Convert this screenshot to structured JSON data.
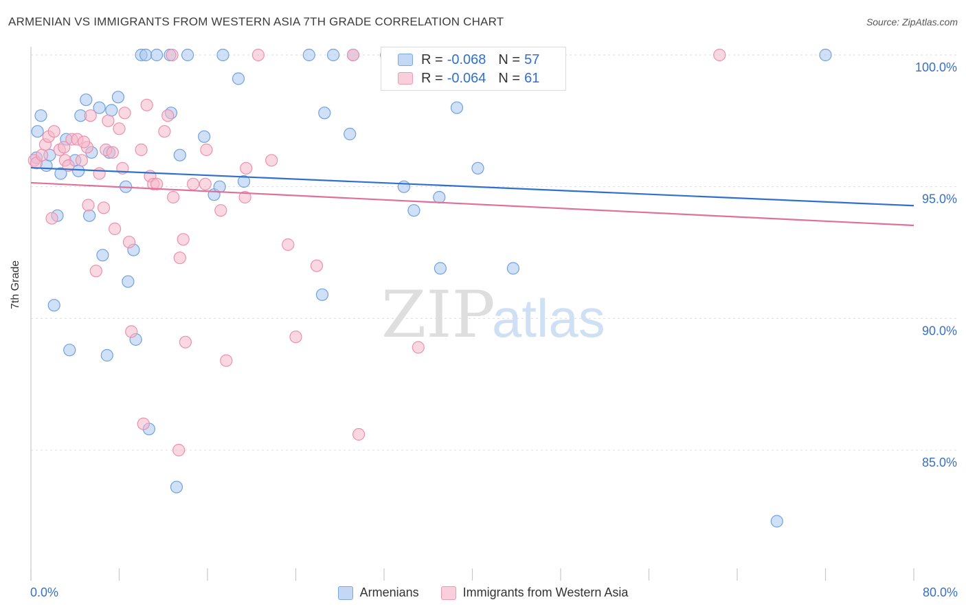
{
  "title": "ARMENIAN VS IMMIGRANTS FROM WESTERN ASIA 7TH GRADE CORRELATION CHART",
  "source": "Source: ZipAtlas.com",
  "watermark": {
    "zip": "ZIP",
    "atlas": "atlas"
  },
  "legend": {
    "rows": [
      {
        "r_label": "R =",
        "r_value": "-0.068",
        "n_label": "N =",
        "n_value": "57",
        "color": "#a9c6f0"
      },
      {
        "r_label": "R =",
        "r_value": "-0.064",
        "n_label": "N =",
        "n_value": "61",
        "color": "#f5b8cb"
      }
    ]
  },
  "bottom_legend": [
    {
      "label": "Armenians",
      "color": "#a9c6f0"
    },
    {
      "label": "Immigrants from Western Asia",
      "color": "#f5b8cb"
    }
  ],
  "x_tick_left": "0.0%",
  "x_tick_right": "80.0%",
  "chart_data": {
    "type": "scatter",
    "title": "ARMENIAN VS IMMIGRANTS FROM WESTERN ASIA 7TH GRADE CORRELATION CHART",
    "xlabel": "",
    "ylabel": "7th Grade",
    "xlim": [
      0,
      80
    ],
    "ylim": [
      80.5,
      100.8
    ],
    "y_ticks": [
      {
        "value": 100,
        "label": "100.0%"
      },
      {
        "value": 95,
        "label": "95.0%"
      },
      {
        "value": 90,
        "label": "90.0%"
      },
      {
        "value": 85,
        "label": "85.0%"
      }
    ],
    "x_tick_values": [
      0,
      8,
      16,
      24,
      32,
      40,
      48,
      56,
      64,
      72,
      80
    ],
    "grid": true,
    "series": [
      {
        "name": "Armenians",
        "color": "#6fa0e0",
        "fill": "#a9c6f0",
        "trend": {
          "x": [
            0,
            80
          ],
          "y": [
            95.72,
            94.28
          ],
          "color": "#2f6fce"
        },
        "points": [
          [
            0.5,
            96.1
          ],
          [
            0.6,
            97.1
          ],
          [
            0.9,
            97.7
          ],
          [
            1.4,
            95.8
          ],
          [
            1.7,
            96.2
          ],
          [
            2.1,
            90.5
          ],
          [
            2.4,
            93.9
          ],
          [
            2.7,
            95.5
          ],
          [
            3.2,
            96.8
          ],
          [
            3.5,
            88.8
          ],
          [
            4.0,
            96.0
          ],
          [
            4.3,
            95.6
          ],
          [
            4.5,
            97.7
          ],
          [
            5.0,
            98.3
          ],
          [
            5.3,
            93.9
          ],
          [
            5.5,
            96.3
          ],
          [
            6.2,
            98.0
          ],
          [
            6.5,
            92.4
          ],
          [
            6.9,
            88.6
          ],
          [
            7.1,
            96.3
          ],
          [
            7.3,
            97.9
          ],
          [
            7.9,
            98.4
          ],
          [
            8.6,
            95.0
          ],
          [
            8.8,
            91.4
          ],
          [
            9.3,
            92.6
          ],
          [
            9.5,
            89.2
          ],
          [
            10.0,
            100.0
          ],
          [
            10.4,
            100.0
          ],
          [
            10.7,
            85.8
          ],
          [
            11.4,
            100.0
          ],
          [
            12.6,
            100.0
          ],
          [
            12.7,
            97.8
          ],
          [
            13.2,
            83.6
          ],
          [
            13.5,
            96.2
          ],
          [
            14.2,
            100.0
          ],
          [
            15.7,
            96.9
          ],
          [
            16.6,
            94.7
          ],
          [
            17.1,
            95.0
          ],
          [
            17.4,
            100.0
          ],
          [
            18.8,
            99.1
          ],
          [
            19.3,
            95.2
          ],
          [
            25.2,
            100.0
          ],
          [
            26.4,
            90.9
          ],
          [
            26.6,
            97.8
          ],
          [
            27.4,
            100.0
          ],
          [
            28.9,
            97.0
          ],
          [
            29.2,
            100.0
          ],
          [
            32.2,
            100.0
          ],
          [
            33.8,
            95.0
          ],
          [
            34.7,
            94.1
          ],
          [
            37.0,
            94.6
          ],
          [
            37.1,
            91.9
          ],
          [
            38.6,
            98.0
          ],
          [
            40.5,
            95.7
          ],
          [
            43.7,
            91.9
          ],
          [
            67.6,
            82.3
          ],
          [
            72.0,
            100.0
          ]
        ]
      },
      {
        "name": "Immigrants from Western Asia",
        "color": "#ee8fab",
        "fill": "#f5b8cb",
        "trend": {
          "x": [
            0,
            80
          ],
          "y": [
            95.15,
            93.53
          ],
          "color": "#e0709a"
        },
        "points": [
          [
            0.3,
            96.0
          ],
          [
            0.5,
            95.9
          ],
          [
            1.0,
            96.2
          ],
          [
            1.3,
            96.6
          ],
          [
            1.6,
            96.9
          ],
          [
            1.9,
            93.8
          ],
          [
            2.1,
            97.1
          ],
          [
            2.6,
            96.4
          ],
          [
            3.0,
            96.5
          ],
          [
            3.1,
            96.0
          ],
          [
            3.4,
            95.8
          ],
          [
            3.7,
            96.8
          ],
          [
            4.2,
            96.8
          ],
          [
            4.6,
            96.0
          ],
          [
            5.1,
            96.5
          ],
          [
            5.2,
            94.3
          ],
          [
            5.4,
            97.7
          ],
          [
            5.9,
            91.8
          ],
          [
            6.2,
            95.5
          ],
          [
            6.6,
            94.2
          ],
          [
            6.8,
            96.4
          ],
          [
            7.0,
            97.5
          ],
          [
            7.4,
            96.3
          ],
          [
            7.6,
            93.4
          ],
          [
            8.0,
            97.2
          ],
          [
            8.3,
            95.7
          ],
          [
            8.5,
            97.8
          ],
          [
            8.9,
            92.9
          ],
          [
            9.1,
            89.5
          ],
          [
            10.0,
            96.4
          ],
          [
            10.2,
            86.0
          ],
          [
            10.5,
            98.1
          ],
          [
            10.8,
            95.4
          ],
          [
            11.1,
            95.1
          ],
          [
            11.4,
            95.1
          ],
          [
            12.1,
            97.1
          ],
          [
            12.4,
            97.7
          ],
          [
            12.8,
            100.0
          ],
          [
            12.9,
            94.6
          ],
          [
            13.4,
            85.0
          ],
          [
            13.5,
            92.3
          ],
          [
            13.8,
            93.0
          ],
          [
            14.0,
            89.1
          ],
          [
            14.7,
            95.1
          ],
          [
            15.8,
            95.1
          ],
          [
            15.9,
            96.4
          ],
          [
            17.2,
            94.1
          ],
          [
            17.7,
            88.4
          ],
          [
            19.4,
            94.6
          ],
          [
            19.5,
            95.7
          ],
          [
            20.6,
            100.0
          ],
          [
            21.8,
            96.0
          ],
          [
            23.3,
            92.8
          ],
          [
            24.0,
            89.3
          ],
          [
            25.9,
            92.0
          ],
          [
            29.2,
            100.0
          ],
          [
            29.7,
            85.6
          ],
          [
            35.1,
            88.9
          ],
          [
            43.4,
            100.0
          ],
          [
            62.4,
            100.0
          ],
          [
            4.8,
            96.7
          ]
        ]
      }
    ]
  }
}
